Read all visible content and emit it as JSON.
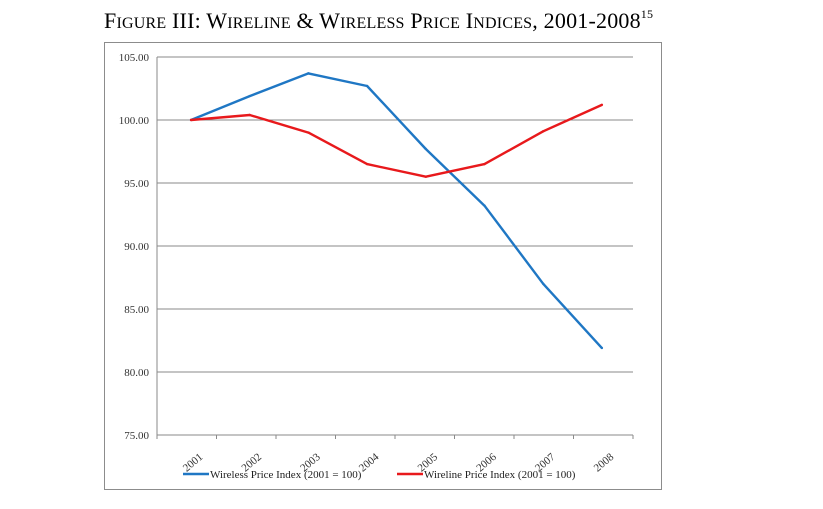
{
  "figure": {
    "title_first": "F",
    "title_word1_rest": "IGURE",
    "title_num": "III:",
    "title_w1_cap": "W",
    "title_w1_rest": "IRELINE",
    "title_amp": "&",
    "title_w2_cap": "W",
    "title_w2_rest": "IRELESS",
    "title_p_cap": "P",
    "title_p_rest": "RICE",
    "title_i_cap": "I",
    "title_i_rest": "NDICES",
    "title_years": ", 2001-2008",
    "footnote": "15"
  },
  "chart_data": {
    "type": "line",
    "title": "Figure III: Wireline & Wireless Price Indices, 2001-2008",
    "categories": [
      "2001",
      "2002",
      "2003",
      "2004",
      "2005",
      "2006",
      "2007",
      "2008"
    ],
    "ylim": [
      75,
      105
    ],
    "yticks": [
      105,
      100,
      95,
      90,
      85,
      80,
      75
    ],
    "ytick_labels": [
      "105.00",
      "100.00",
      "95.00",
      "90.00",
      "85.00",
      "80.00",
      "75.00"
    ],
    "grid": true,
    "legend": "bottom",
    "series": [
      {
        "name": "Wireless Price Index (2001 = 100)",
        "color": "#1f77c4",
        "values": [
          100.0,
          101.9,
          103.7,
          102.7,
          97.7,
          93.2,
          87.0,
          81.9
        ]
      },
      {
        "name": "Wireline Price Index (2001 = 100)",
        "color": "#e8191c",
        "values": [
          100.0,
          100.4,
          99.0,
          96.5,
          95.5,
          96.5,
          99.1,
          101.2
        ]
      }
    ]
  }
}
